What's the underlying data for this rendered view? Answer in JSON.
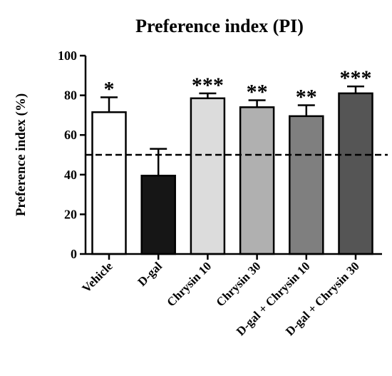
{
  "chart_data": {
    "type": "bar",
    "title": "Preference index (PI)",
    "xlabel": "",
    "ylabel": "Preference index (%)",
    "ylim": [
      0,
      100
    ],
    "yticks": [
      0,
      20,
      40,
      60,
      80,
      100
    ],
    "reference_line": 50,
    "categories": [
      "Vehicle",
      "D-gal",
      "Chrysin 10",
      "Chrysin 30",
      "D-gal + Chrysin 10",
      "D-gal + Chrysin 30"
    ],
    "values": [
      71.5,
      39.5,
      78.5,
      74,
      69.5,
      81
    ],
    "errors": [
      7.5,
      13.5,
      2.5,
      3.5,
      5.5,
      3.5
    ],
    "significance": [
      "*",
      "",
      "***",
      "**",
      "**",
      "***"
    ],
    "colors": [
      "#ffffff",
      "#161616",
      "#dcdcdc",
      "#b0b0b0",
      "#7f7f7f",
      "#555555"
    ],
    "grid": false
  }
}
